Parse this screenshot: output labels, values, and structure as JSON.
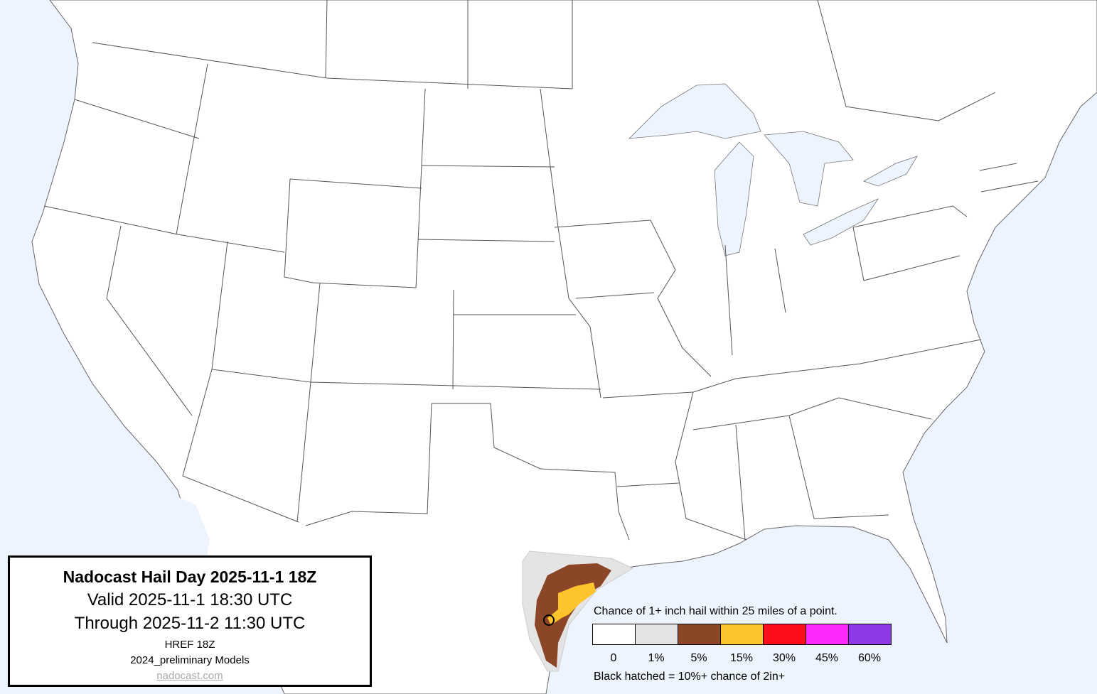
{
  "title": {
    "heading": "Nadocast Hail Day 2025-11-1 18Z",
    "valid": "Valid 2025-11-1 18:30 UTC",
    "through": "Through 2025-11-2 11:30 UTC",
    "model": "HREF 18Z",
    "models": "2024_preliminary Models",
    "link": "nadocast.com"
  },
  "legend": {
    "title": "Chance of 1+ inch hail within 25 miles of a point.",
    "bins": [
      {
        "label": "0",
        "color": "#ffffff"
      },
      {
        "label": "1%",
        "color": "#e4e4e4"
      },
      {
        "label": "5%",
        "color": "#8b4527"
      },
      {
        "label": "15%",
        "color": "#fec42e"
      },
      {
        "label": "30%",
        "color": "#fe0d1b"
      },
      {
        "label": "45%",
        "color": "#fd28fc"
      },
      {
        "label": "60%",
        "color": "#8e39e6"
      }
    ],
    "note": "Black hatched = 10%+ chance of 2in+"
  },
  "colors": {
    "water": "#eef4fe",
    "land": "#ffffff",
    "borders": "#555555"
  }
}
